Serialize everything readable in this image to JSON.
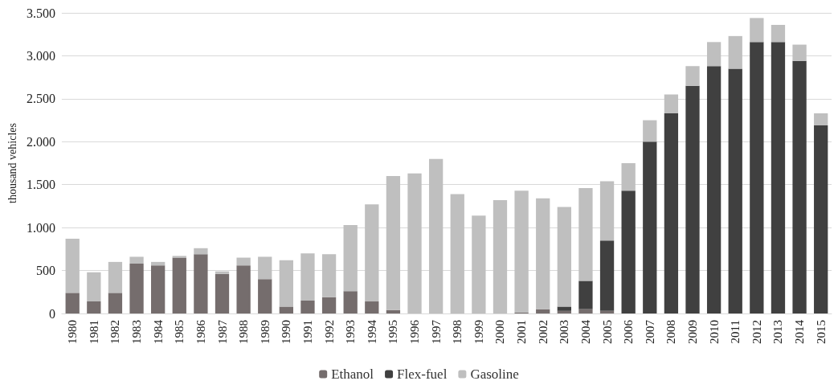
{
  "chart_data": {
    "type": "bar",
    "stacked": true,
    "ylabel": "thousand vehicles",
    "categories": [
      "1980",
      "1981",
      "1982",
      "1983",
      "1984",
      "1985",
      "1986",
      "1987",
      "1988",
      "1989",
      "1990",
      "1991",
      "1992",
      "1993",
      "1994",
      "1995",
      "1996",
      "1997",
      "1998",
      "1999",
      "2000",
      "2001",
      "2002",
      "2003",
      "2004",
      "2005",
      "2006",
      "2007",
      "2008",
      "2009",
      "2010",
      "2011",
      "2012",
      "2013",
      "2014",
      "2015"
    ],
    "series": [
      {
        "name": "Ethanol",
        "color": "#756d6d",
        "values": [
          240,
          140,
          240,
          580,
          560,
          650,
          690,
          460,
          560,
          400,
          80,
          150,
          190,
          260,
          140,
          40,
          0,
          0,
          0,
          0,
          0,
          10,
          50,
          30,
          50,
          30,
          0,
          0,
          0,
          0,
          0,
          0,
          0,
          0,
          0,
          0
        ]
      },
      {
        "name": "Flex-fuel",
        "color": "#404040",
        "values": [
          0,
          0,
          0,
          0,
          0,
          0,
          0,
          0,
          0,
          0,
          0,
          0,
          0,
          0,
          0,
          0,
          0,
          0,
          0,
          0,
          0,
          0,
          0,
          50,
          330,
          820,
          1430,
          2000,
          2330,
          2650,
          2880,
          2850,
          3160,
          3160,
          2940,
          2190
        ]
      },
      {
        "name": "Gasoline",
        "color": "#bfbfbf",
        "values": [
          630,
          340,
          360,
          80,
          40,
          20,
          70,
          30,
          90,
          260,
          540,
          550,
          500,
          770,
          1130,
          1560,
          1630,
          1800,
          1390,
          1140,
          1320,
          1420,
          1290,
          1160,
          1080,
          690,
          320,
          250,
          220,
          230,
          280,
          380,
          280,
          200,
          190,
          140
        ]
      }
    ],
    "ylim": [
      0,
      3500
    ],
    "yticks": [
      0,
      {
        "value": 500,
        "label": "500"
      },
      {
        "value": 1000,
        "label": "1.000"
      },
      {
        "value": 1500,
        "label": "1.500"
      },
      {
        "value": 2000,
        "label": "2.000"
      },
      {
        "value": 2500,
        "label": "2.500"
      },
      {
        "value": 3000,
        "label": "3.000"
      },
      {
        "value": 3500,
        "label": "3.500"
      }
    ],
    "grid": "y",
    "legend": "bottom"
  }
}
